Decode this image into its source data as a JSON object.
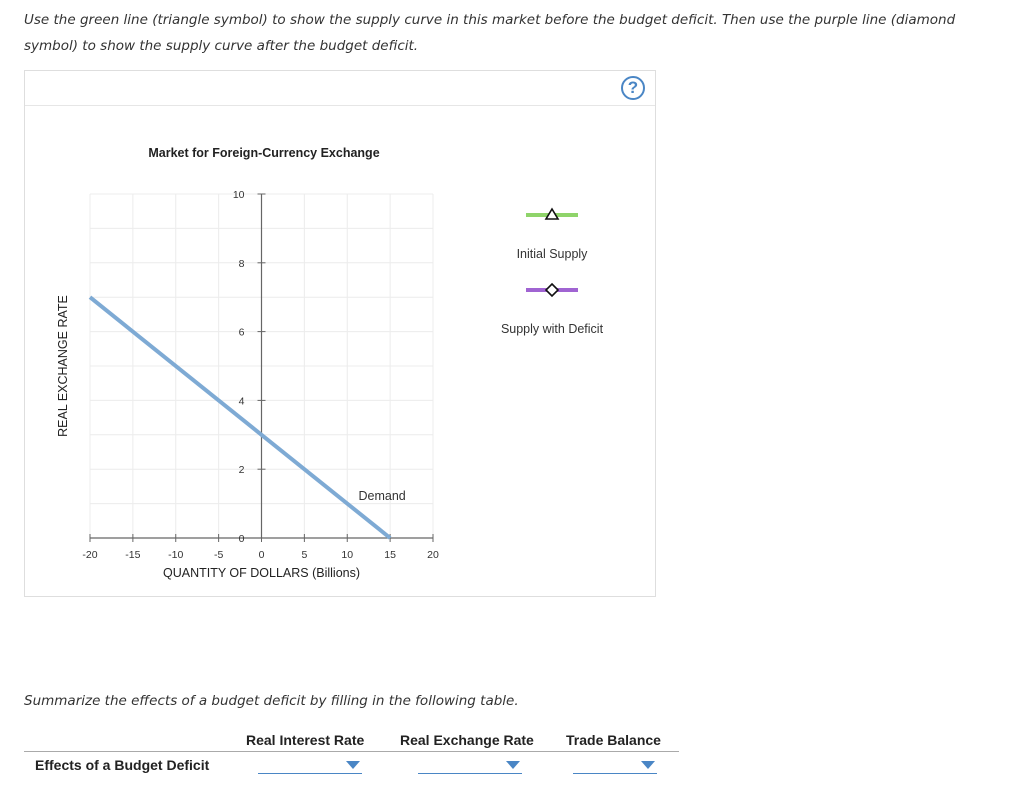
{
  "instructions": "Use the green line (triangle symbol) to show the supply curve in this market before the budget deficit. Then use the purple line (diamond symbol) to show the supply curve after the budget deficit.",
  "help_label": "?",
  "chart_data": {
    "type": "line",
    "title": "Market for Foreign-Currency Exchange",
    "xlabel": "QUANTITY OF DOLLARS (Billions)",
    "ylabel": "REAL EXCHANGE RATE",
    "xlim": [
      -20,
      20
    ],
    "ylim": [
      0,
      10
    ],
    "x_ticks": [
      -20,
      -15,
      -10,
      -5,
      0,
      5,
      10,
      15,
      20
    ],
    "y_ticks": [
      0,
      2,
      4,
      6,
      8,
      10
    ],
    "grid": true,
    "series": [
      {
        "name": "Demand",
        "x": [
          -20,
          15
        ],
        "y": [
          7,
          0
        ],
        "color": "#7eaad4"
      }
    ],
    "legend_tools": [
      {
        "label": "Initial Supply",
        "symbol": "triangle",
        "color": "#8fd46a"
      },
      {
        "label": "Supply with Deficit",
        "symbol": "diamond",
        "color": "#a064d2"
      }
    ]
  },
  "summary": {
    "prompt": "Summarize the effects of a budget deficit by filling in the following table.",
    "columns": [
      "Real Interest Rate",
      "Real Exchange Rate",
      "Trade Balance"
    ],
    "row_label": "Effects of a Budget Deficit",
    "selections": [
      "",
      "",
      ""
    ]
  }
}
